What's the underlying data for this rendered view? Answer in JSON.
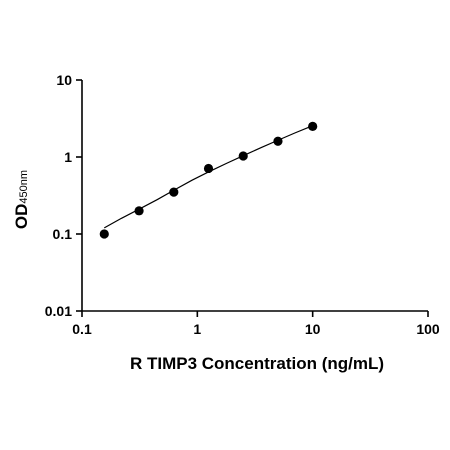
{
  "chart_data": {
    "type": "scatter",
    "xlabel": "R TIMP3 Concentration (ng/mL)",
    "ylabel": "OD",
    "ylabel_subscript": "450nm",
    "x_scale": "log",
    "y_scale": "log",
    "xlim": [
      0.1,
      100
    ],
    "ylim": [
      0.01,
      10
    ],
    "x_ticks": [
      "0.1",
      "1",
      "10",
      "100"
    ],
    "y_ticks": [
      "0.01",
      "0.1",
      "1",
      "10"
    ],
    "grid": false,
    "legend": "none",
    "marker_color": "#000000",
    "series": [
      {
        "x": [
          0.156,
          0.3125,
          0.625,
          1.25,
          2.5,
          5,
          10
        ],
        "y": [
          0.1,
          0.2,
          0.35,
          0.71,
          1.03,
          1.6,
          2.5
        ]
      }
    ],
    "fit_curve": {
      "x": [
        0.156,
        0.22,
        0.3125,
        0.45,
        0.625,
        0.9,
        1.25,
        1.8,
        2.5,
        3.6,
        5,
        7,
        10
      ],
      "y": [
        0.12,
        0.16,
        0.21,
        0.28,
        0.37,
        0.5,
        0.64,
        0.83,
        1.04,
        1.33,
        1.65,
        2.05,
        2.55
      ]
    }
  }
}
